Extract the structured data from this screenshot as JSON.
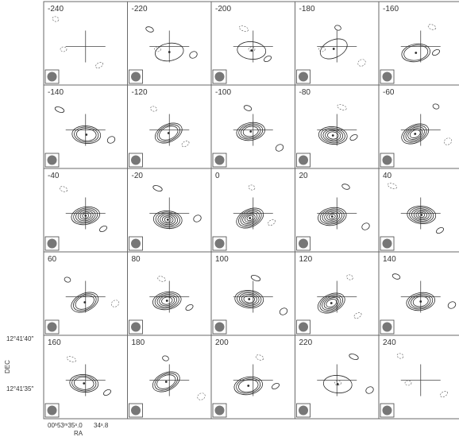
{
  "chart_data": {
    "type": "contour-channel-map",
    "panel_labels": [
      "-240",
      "-220",
      "-200",
      "-180",
      "-160",
      "-140",
      "-120",
      "-100",
      "-80",
      "-60",
      "-40",
      "-20",
      "0",
      "20",
      "40",
      "60",
      "80",
      "100",
      "120",
      "140",
      "160",
      "180",
      "200",
      "220",
      "240"
    ],
    "panel_intensity": [
      0,
      1,
      1,
      1,
      2,
      3,
      3,
      4,
      5,
      5,
      6,
      6,
      6,
      6,
      6,
      3,
      5,
      5,
      5,
      4,
      3,
      3,
      3,
      1,
      0
    ],
    "dec_ticks": [
      "12°41′40″",
      "12°41′35″"
    ],
    "ra_ticks": [
      "00ʰ53ᵐ35ˢ.0",
      "34ˢ.8"
    ],
    "ylabel": "DEC",
    "xlabel": "RA",
    "colors": {
      "contour": "#2a2a2a",
      "negative": "#555555",
      "frame": "#6a6a6a",
      "beam": "#777777"
    }
  }
}
